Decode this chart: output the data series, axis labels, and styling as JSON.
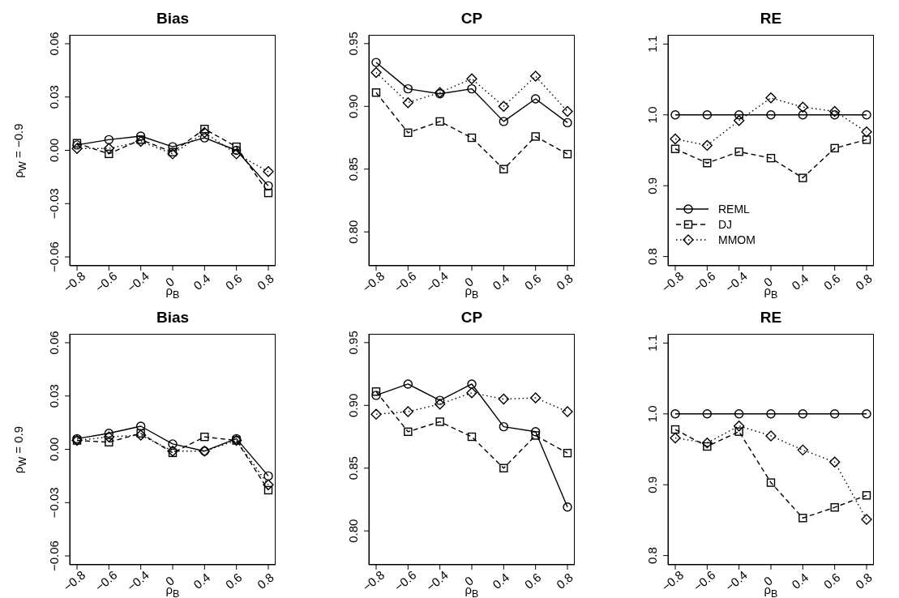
{
  "chart_data": [
    {
      "type": "line",
      "title": "Bias",
      "xlabel": "ρ$_{B}$",
      "ylabel": "ρ$_{W}$ = −0.9",
      "categories": [
        "−0.8",
        "−0.6",
        "−0.4",
        "0",
        "0.4",
        "0.6",
        "0.8"
      ],
      "ylim": [
        -0.065,
        0.065
      ],
      "yticks": [
        {
          "value": -0.06,
          "label": "−0.06"
        },
        {
          "value": -0.03,
          "label": "−0.03"
        },
        {
          "value": 0,
          "label": "0.00"
        },
        0.03,
        0.06
      ],
      "series": [
        {
          "color": "#000000",
          "marker": "circle",
          "line_style": "solid",
          "values": [
            0.003,
            0.006,
            0.008,
            0.002,
            0.007,
            0.0,
            -0.02
          ]
        },
        {
          "color": "#000000",
          "marker": "square",
          "line_style": "dashed",
          "values": [
            0.004,
            -0.002,
            0.006,
            -0.001,
            0.012,
            0.002,
            -0.024
          ]
        },
        {
          "color": "#000000",
          "marker": "diamond",
          "line_style": "dotted",
          "values": [
            0.001,
            0.001,
            0.005,
            -0.002,
            0.01,
            -0.002,
            -0.012
          ]
        }
      ]
    },
    {
      "type": "line",
      "title": "CP",
      "xlabel": "ρ$_{B}$",
      "categories": [
        "−0.8",
        "−0.6",
        "−0.4",
        "0",
        "0.4",
        "0.6",
        "0.8"
      ],
      "ylim": [
        0.773,
        0.957
      ],
      "yticks": [
        {
          "value": 0.8,
          "label": "0.80"
        },
        0.85,
        {
          "value": 0.9,
          "label": "0.90"
        },
        0.95
      ],
      "series": [
        {
          "color": "#000000",
          "marker": "circle",
          "line_style": "solid",
          "values": [
            0.935,
            0.914,
            0.91,
            0.914,
            0.888,
            0.906,
            0.887
          ]
        },
        {
          "color": "#000000",
          "marker": "square",
          "line_style": "dashed",
          "values": [
            0.911,
            0.879,
            0.888,
            0.875,
            0.85,
            0.876,
            0.862
          ]
        },
        {
          "color": "#000000",
          "marker": "diamond",
          "line_style": "dotted",
          "values": [
            0.927,
            0.903,
            0.911,
            0.922,
            0.9,
            0.924,
            0.896
          ]
        }
      ]
    },
    {
      "type": "line",
      "title": "RE",
      "xlabel": "ρ$_{B}$",
      "categories": [
        "−0.8",
        "−0.6",
        "−0.4",
        "0",
        "0.4",
        "0.6",
        "0.8"
      ],
      "ylim": [
        0.787,
        1.113
      ],
      "yticks": [
        0.8,
        0.9,
        {
          "value": 1,
          "label": "1.0"
        },
        1.1
      ],
      "legend": "bottom left",
      "series": [
        {
          "name": "REML",
          "color": "#000000",
          "marker": "circle",
          "line_style": "solid",
          "values": [
            1.0,
            1.0,
            1.0,
            1.0,
            1.0,
            1.0,
            1.0
          ]
        },
        {
          "name": "DJ",
          "color": "#000000",
          "marker": "square",
          "line_style": "dashed",
          "values": [
            0.952,
            0.932,
            0.948,
            0.939,
            0.911,
            0.953,
            0.965
          ]
        },
        {
          "name": "MMOM",
          "color": "#000000",
          "marker": "diamond",
          "line_style": "dotted",
          "values": [
            0.966,
            0.957,
            0.992,
            1.024,
            1.011,
            1.005,
            0.976
          ]
        }
      ]
    },
    {
      "type": "line",
      "title": "Bias",
      "xlabel": "ρ$_{B}$",
      "ylabel": "ρ$_{W}$ = 0.9",
      "categories": [
        "−0.8",
        "−0.6",
        "−0.4",
        "0",
        "0.4",
        "0.6",
        "0.8"
      ],
      "ylim": [
        -0.065,
        0.065
      ],
      "yticks": [
        {
          "value": -0.06,
          "label": "−0.06"
        },
        {
          "value": -0.03,
          "label": "−0.03"
        },
        {
          "value": 0,
          "label": "0.00"
        },
        0.03,
        0.06
      ],
      "series": [
        {
          "color": "#000000",
          "marker": "circle",
          "line_style": "solid",
          "values": [
            0.006,
            0.009,
            0.013,
            0.003,
            -0.001,
            0.006,
            -0.015
          ]
        },
        {
          "color": "#000000",
          "marker": "square",
          "line_style": "dashed",
          "values": [
            0.005,
            0.004,
            0.009,
            -0.002,
            0.007,
            0.005,
            -0.023
          ]
        },
        {
          "color": "#000000",
          "marker": "diamond",
          "line_style": "dotted",
          "values": [
            0.005,
            0.007,
            0.008,
            -0.001,
            -0.001,
            0.005,
            -0.02
          ]
        }
      ]
    },
    {
      "type": "line",
      "title": "CP",
      "xlabel": "ρ$_{B}$",
      "categories": [
        "−0.8",
        "−0.6",
        "−0.4",
        "0",
        "0.4",
        "0.6",
        "0.8"
      ],
      "ylim": [
        0.773,
        0.957
      ],
      "yticks": [
        {
          "value": 0.8,
          "label": "0.80"
        },
        0.85,
        {
          "value": 0.9,
          "label": "0.90"
        },
        0.95
      ],
      "series": [
        {
          "color": "#000000",
          "marker": "circle",
          "line_style": "solid",
          "values": [
            0.908,
            0.917,
            0.904,
            0.917,
            0.883,
            0.879,
            0.819
          ]
        },
        {
          "color": "#000000",
          "marker": "square",
          "line_style": "dashed",
          "values": [
            0.911,
            0.879,
            0.887,
            0.875,
            0.85,
            0.876,
            0.862
          ]
        },
        {
          "color": "#000000",
          "marker": "diamond",
          "line_style": "dotted",
          "values": [
            0.893,
            0.895,
            0.901,
            0.91,
            0.905,
            0.906,
            0.895
          ]
        }
      ]
    },
    {
      "type": "line",
      "title": "RE",
      "xlabel": "ρ$_{B}$",
      "categories": [
        "−0.8",
        "−0.6",
        "−0.4",
        "0",
        "0.4",
        "0.6",
        "0.8"
      ],
      "ylim": [
        0.787,
        1.113
      ],
      "yticks": [
        0.8,
        0.9,
        {
          "value": 1,
          "label": "1.0"
        },
        1.1
      ],
      "series": [
        {
          "color": "#000000",
          "marker": "circle",
          "line_style": "solid",
          "values": [
            1.0,
            1.0,
            1.0,
            1.0,
            1.0,
            1.0,
            1.0
          ]
        },
        {
          "color": "#000000",
          "marker": "square",
          "line_style": "dashed",
          "values": [
            0.978,
            0.954,
            0.975,
            0.903,
            0.853,
            0.868,
            0.885
          ]
        },
        {
          "color": "#000000",
          "marker": "diamond",
          "line_style": "dotted",
          "values": [
            0.966,
            0.959,
            0.983,
            0.969,
            0.949,
            0.932,
            0.851
          ]
        }
      ]
    }
  ]
}
